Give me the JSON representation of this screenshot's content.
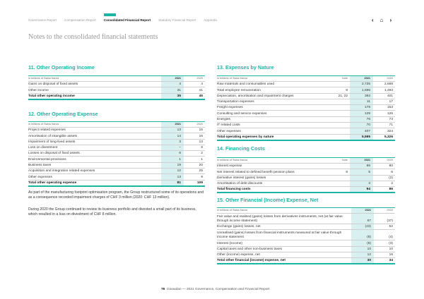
{
  "nav": {
    "items": [
      "Governance Report",
      "Compensation Report",
      "Consolidated Financial Report",
      "Statutory Financial Report",
      "Appendix"
    ],
    "active": 2,
    "icons": [
      "chevron-left-icon",
      "home-icon",
      "chevron-right-icon"
    ]
  },
  "page_title": "Notes to the consolidated financial statements",
  "accent": "#1bb5a6",
  "s11": {
    "title": "11.  Other Operating Income",
    "unit": "in millions of Swiss francs",
    "y1": "2021",
    "y2": "2020",
    "rows": [
      [
        "Gains on disposal of fixed assets",
        "4",
        "4"
      ],
      [
        "Other income",
        "31",
        "41"
      ]
    ],
    "total": [
      "Total other operating income",
      "35",
      "45"
    ]
  },
  "s12": {
    "title": "12.  Other Operating Expense",
    "unit": "in millions of Swiss francs",
    "y1": "2021",
    "y2": "2020",
    "rows": [
      [
        "Project related expenses",
        "13",
        "15"
      ],
      [
        "Amortisation of intangible assets",
        "14",
        "16"
      ],
      [
        "Impairment of long-lived assets",
        "3",
        "13"
      ],
      [
        "Loss on divestment",
        "–",
        "8"
      ],
      [
        "Losses on disposal of fixed assets",
        "6",
        "2"
      ],
      [
        "Environmental provisions",
        "1",
        "1"
      ],
      [
        "Business taxes",
        "19",
        "20"
      ],
      [
        "Acquisition and integration related expenses",
        "12",
        "25"
      ],
      [
        "Other expenses",
        "13",
        "9"
      ]
    ],
    "total": [
      "Total other operating expense",
      "81",
      "109"
    ]
  },
  "paragraphs": [
    "As part of the manufacturing footprint optimisation program, the Group restructured some of its operations and as a consequence recorded impairment charges of CHF 3 million (2020: CHF 13 million).",
    "During 2020 the Group continued to review its business portfolio and divested a small part of its business, which resulted in a loss on divestment of CHF 8 million."
  ],
  "s13": {
    "title": "13.  Expenses by Nature",
    "unit": "in millions of Swiss francs",
    "note": "Note",
    "y1": "2021",
    "y2": "2020",
    "rows": [
      [
        "Raw materials and consumables used",
        "",
        "2,735",
        "2,668"
      ],
      [
        "Total employee remuneration",
        "8",
        "1,596",
        "1,493"
      ],
      [
        "Depreciation, amortisation and impairment charges",
        "21, 22",
        "393",
        "401"
      ],
      [
        "Transportation expenses",
        "",
        "11",
        "17"
      ],
      [
        "Freight expenses",
        "",
        "178",
        "153"
      ],
      [
        "Consulting and service expenses",
        "",
        "129",
        "126"
      ],
      [
        "Energies",
        "",
        "76",
        "73"
      ],
      [
        "IT related costs",
        "",
        "70",
        "71"
      ],
      [
        "Other expenses",
        "",
        "407",
        "324"
      ]
    ],
    "total": [
      "Total operating expenses by nature",
      "",
      "5,595",
      "5,326"
    ]
  },
  "s14": {
    "title": "14.  Financing Costs",
    "unit": "in millions of Swiss francs",
    "note": "Note",
    "y1": "2021",
    "y2": "2020",
    "rows": [
      [
        "Interest expense",
        "",
        "86",
        "80"
      ],
      [
        "Net interest related to defined benefit pension plans",
        "8",
        "5",
        "6"
      ],
      [
        "Derivative interest (gains) losses",
        "",
        "",
        "(2)"
      ],
      [
        "Amortisation of debt discounts",
        "",
        "3",
        "2"
      ]
    ],
    "total": [
      "Total financing costs",
      "",
      "94",
      "86"
    ]
  },
  "s15": {
    "title": "15.  Other Financial (Income) Expense, Net",
    "unit": "in millions of Swiss francs",
    "y1": "2021",
    "y2": "2020",
    "rows": [
      [
        "Fair value and realised (gains) losses from derivatives instruments, net (at fair value through income statement)",
        "67",
        "(37)"
      ],
      [
        "Exchange (gains) losses, net",
        "(43)",
        "52"
      ],
      [
        "Unrealised (gains) losses from financial instruments measured at fair value through income statement",
        "(8)",
        "(4)"
      ],
      [
        "Interest (income)",
        "(8)",
        "(3)"
      ],
      [
        "Capital taxes and other non-business taxes",
        "10",
        "10"
      ],
      [
        "Other (income) expense, net",
        "12",
        "16"
      ]
    ],
    "total": [
      "Total other financial (income) expense, net",
      "30",
      "34"
    ]
  },
  "footer": {
    "page": "76",
    "text": "Givaudan — 2021 Governance, Compensation and Financial Report"
  }
}
